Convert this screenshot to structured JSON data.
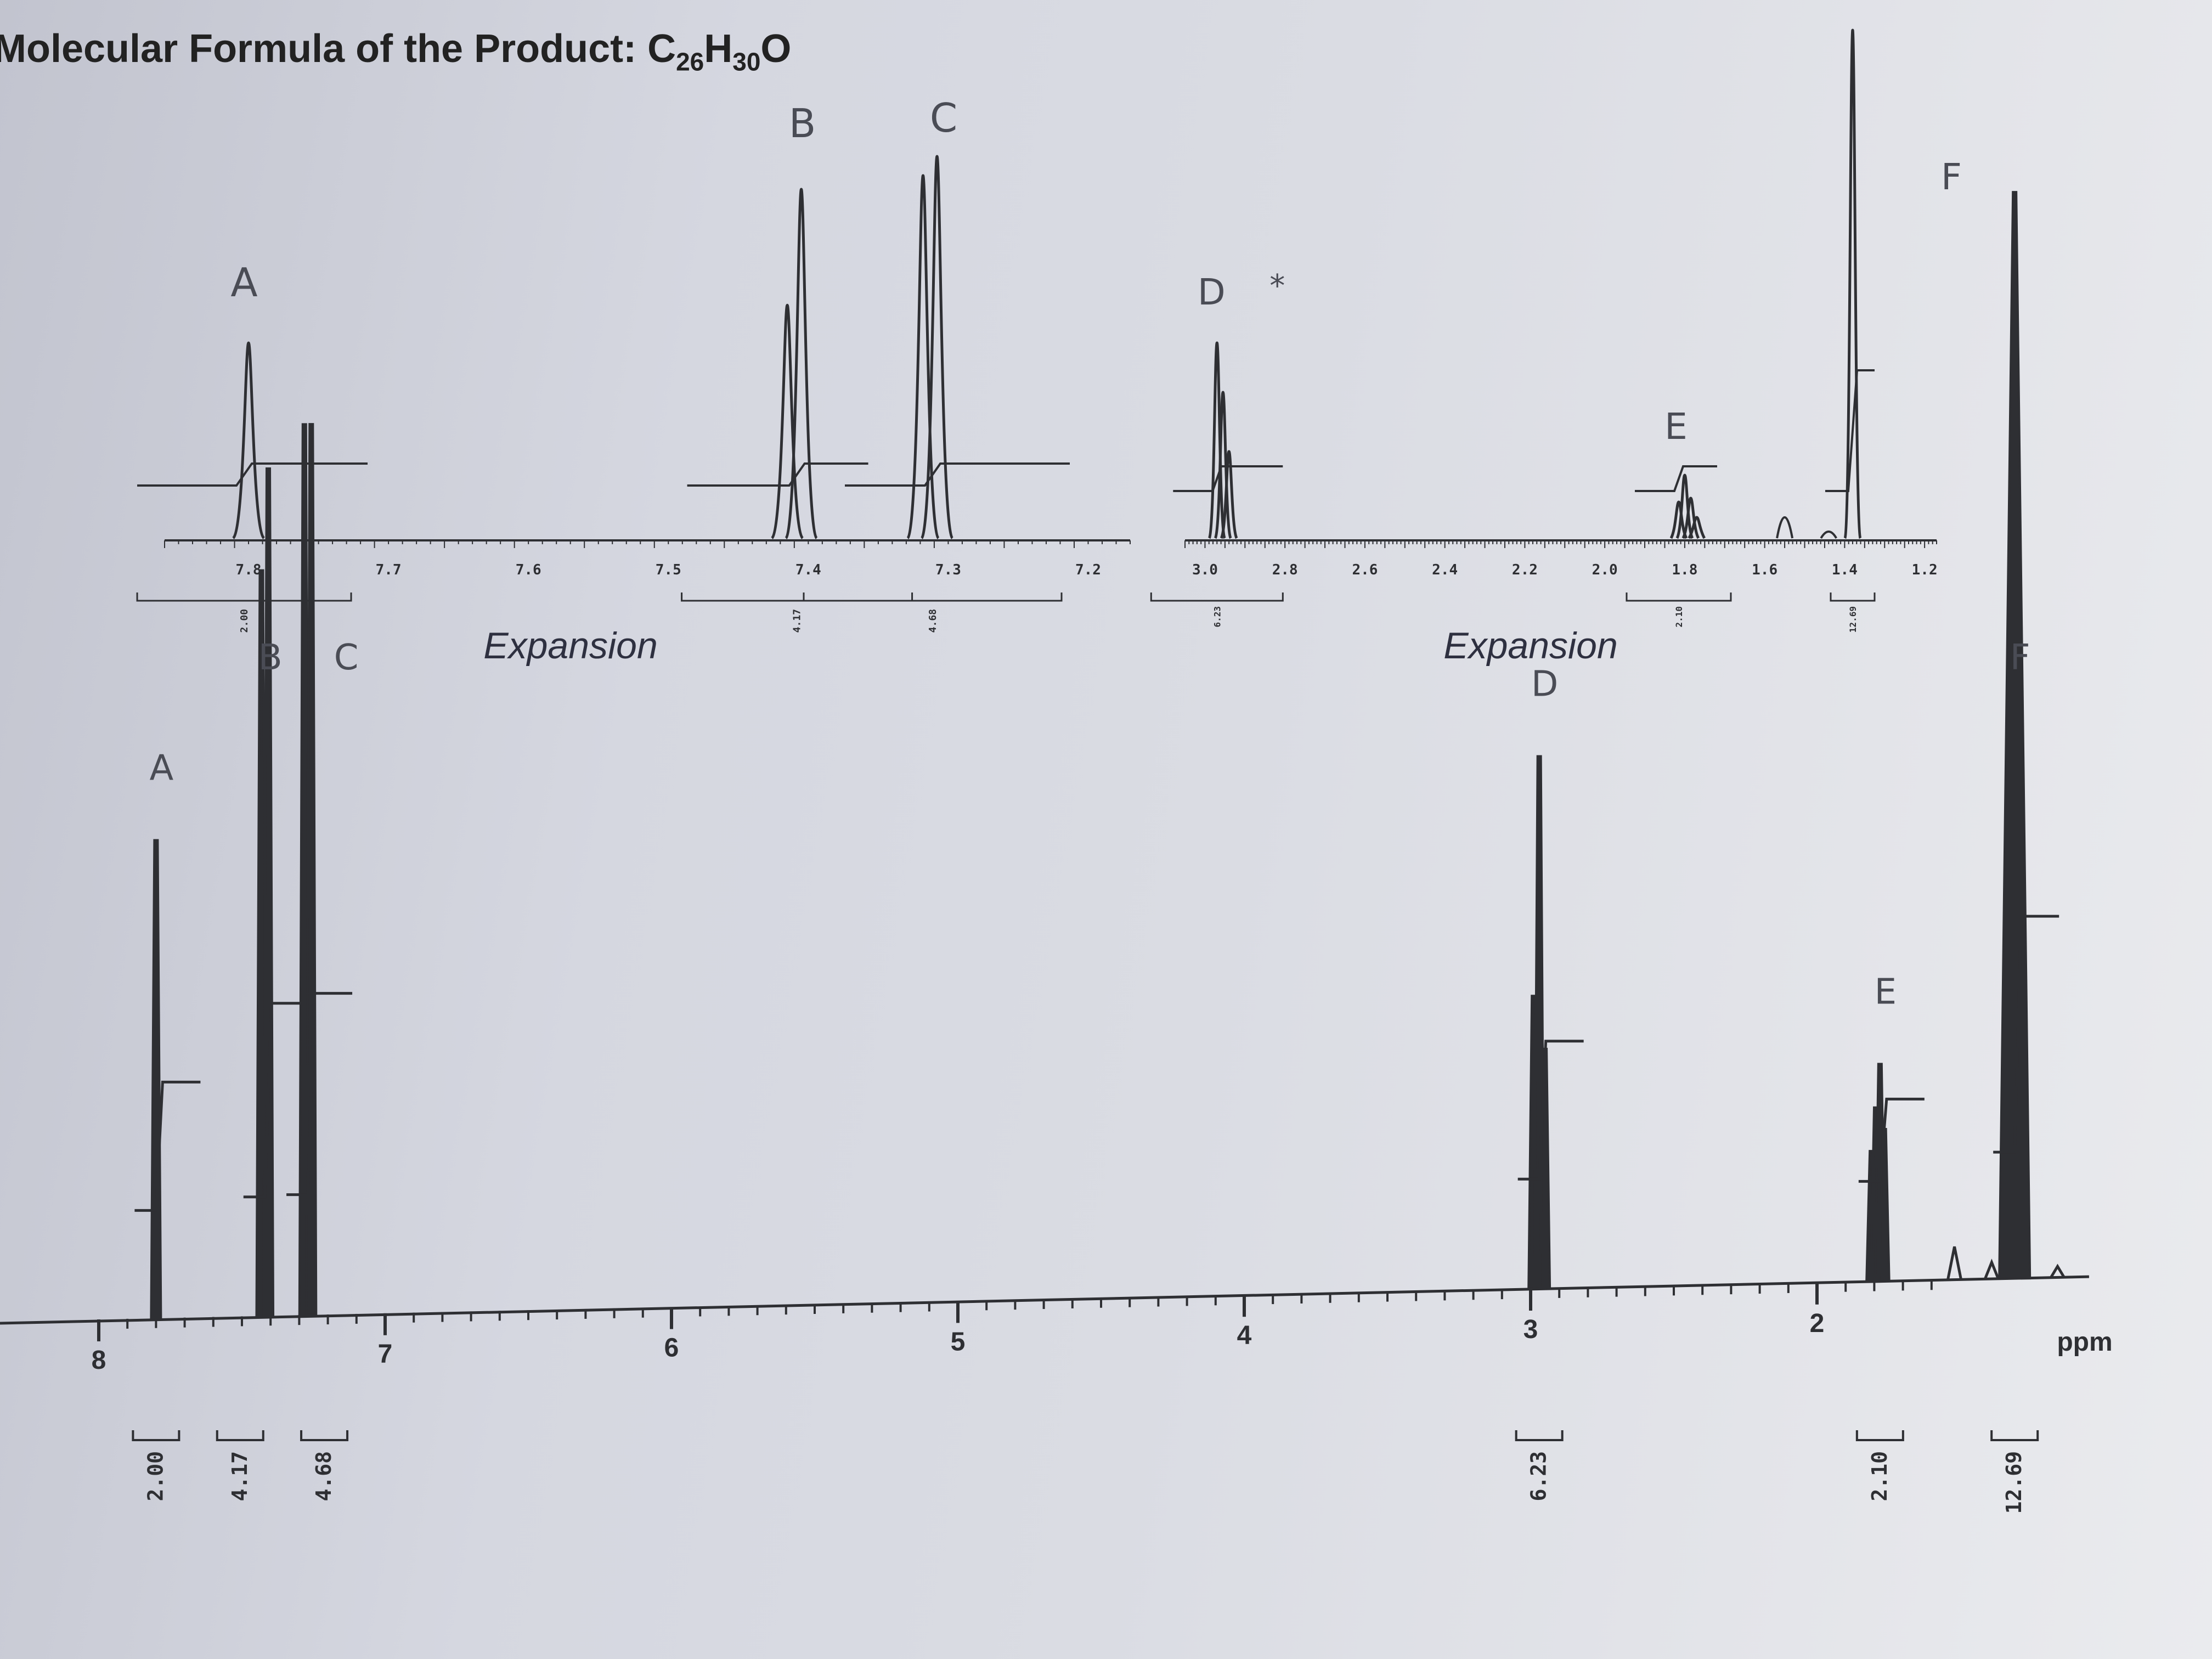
{
  "header": {
    "title_prefix": "Molecular Formula of the Product: ",
    "formula_parts": [
      "C",
      "26",
      "H",
      "30",
      "O"
    ]
  },
  "chart_data": [
    {
      "type": "line",
      "name": "full_spectrum",
      "xlabel": "ppm",
      "x_reversed": true,
      "xlim": [
        8.0,
        1.0
      ],
      "x_ticks": [
        "8",
        "7",
        "6",
        "5",
        "4",
        "3",
        "2"
      ],
      "grid": false,
      "peaks": [
        {
          "label": "A",
          "ppm": 7.8,
          "height": 0.44
        },
        {
          "label": "B",
          "ppm": 7.42,
          "height": 0.78
        },
        {
          "label": "C",
          "ppm": 7.27,
          "height": 0.82
        },
        {
          "label": "D",
          "ppm": 2.97,
          "height": 0.49
        },
        {
          "label": "E",
          "ppm": 1.78,
          "height": 0.2
        },
        {
          "label": "F",
          "ppm": 1.31,
          "height": 1.0
        }
      ],
      "integrals": [
        {
          "label": "A",
          "value": "2.00"
        },
        {
          "label": "B",
          "value": "4.17"
        },
        {
          "label": "C",
          "value": "4.68"
        },
        {
          "label": "D",
          "value": "6.23"
        },
        {
          "label": "E",
          "value": "2.10"
        },
        {
          "label": "F",
          "value": "12.69"
        }
      ]
    },
    {
      "type": "line",
      "name": "expansion_aromatic",
      "title": "Expansion",
      "x_reversed": true,
      "xlim": [
        7.86,
        7.17
      ],
      "x_ticks": [
        "7.8",
        "7.7",
        "7.6",
        "7.5",
        "7.4",
        "7.3",
        "7.2"
      ],
      "integral_values": [
        "2.00",
        "4.17",
        "4.68"
      ],
      "peak_labels": [
        "A",
        "B",
        "C"
      ]
    },
    {
      "type": "line",
      "name": "expansion_aliphatic",
      "title": "Expansion",
      "x_reversed": true,
      "xlim": [
        3.05,
        1.17
      ],
      "x_ticks": [
        "3.0",
        "2.8",
        "2.6",
        "2.4",
        "2.2",
        "2.0",
        "1.8",
        "1.6",
        "1.4",
        "1.2"
      ],
      "integral_values": [
        "6.23",
        "2.10",
        "12.69"
      ],
      "peak_labels": [
        "D",
        "E",
        "F"
      ],
      "star_annotation": "*"
    }
  ]
}
